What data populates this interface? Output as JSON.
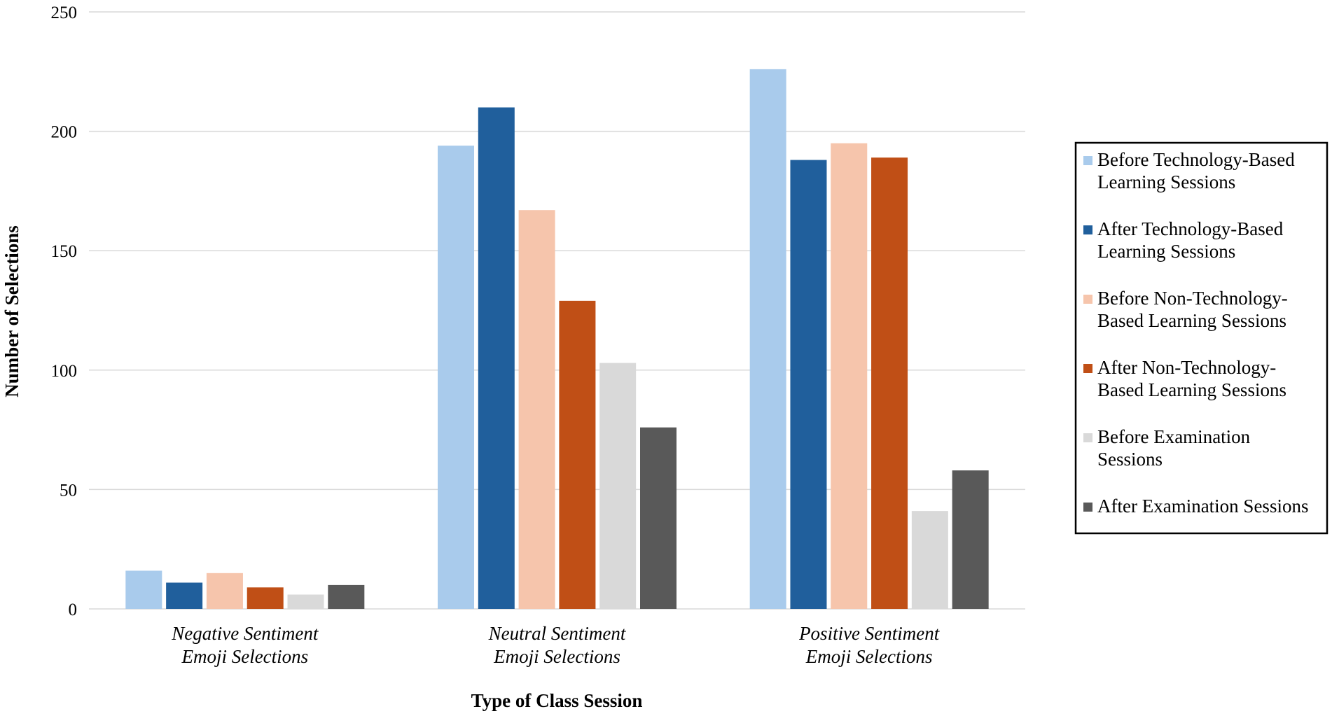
{
  "chart_data": {
    "type": "bar",
    "title": "",
    "xlabel": "Type of Class Session",
    "ylabel": "Number of Selections",
    "ylim": [
      0,
      250
    ],
    "yticks": [
      0,
      50,
      100,
      150,
      200,
      250
    ],
    "grid": true,
    "legend_position": "right",
    "categories": [
      [
        "Negative Sentiment",
        "Emoji Selections"
      ],
      [
        "Neutral Sentiment",
        "Emoji Selections"
      ],
      [
        "Positive Sentiment",
        "Emoji Selections"
      ]
    ],
    "series": [
      {
        "name": [
          "Before Technology-Based",
          "Learning Sessions"
        ],
        "color": "#A9CBEC",
        "values": [
          16,
          194,
          226
        ]
      },
      {
        "name": [
          "After Technology-Based",
          "Learning Sessions"
        ],
        "color": "#205F9C",
        "values": [
          11,
          210,
          188
        ]
      },
      {
        "name": [
          "Before Non-Technology-",
          "Based Learning Sessions"
        ],
        "color": "#F6C5AC",
        "values": [
          15,
          167,
          195
        ]
      },
      {
        "name": [
          "After Non-Technology-",
          "Based Learning Sessions"
        ],
        "color": "#C04F16",
        "values": [
          9,
          129,
          189
        ]
      },
      {
        "name": [
          "Before Examination",
          "Sessions"
        ],
        "color": "#D9D9D9",
        "values": [
          6,
          103,
          41
        ]
      },
      {
        "name": [
          "After Examination Sessions"
        ],
        "color": "#595959",
        "values": [
          10,
          76,
          58
        ]
      }
    ]
  }
}
